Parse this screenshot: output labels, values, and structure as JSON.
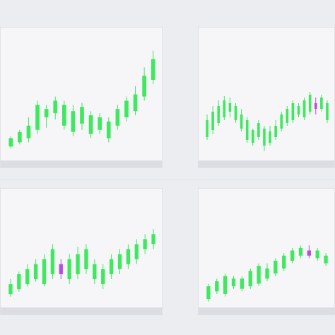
{
  "colors": {
    "up": "#3fe85f",
    "down": "#b54fe2",
    "panel": "#f6f6f9",
    "background": "#ecedf1",
    "footer": "#dcdde3"
  },
  "panels": [
    {
      "title": "",
      "subtitle": "",
      "badge": "",
      "footer_left": "",
      "footer_right": "",
      "chart_data": {
        "type": "candlestick",
        "series": [
          {
            "o": 38,
            "c": 42,
            "h": 43,
            "l": 37
          },
          {
            "o": 40,
            "c": 45,
            "h": 46,
            "l": 39
          },
          {
            "o": 42,
            "c": 48,
            "h": 52,
            "l": 40
          },
          {
            "o": 46,
            "c": 58,
            "h": 60,
            "l": 44
          },
          {
            "o": 52,
            "c": 56,
            "h": 58,
            "l": 47
          },
          {
            "o": 54,
            "c": 60,
            "h": 62,
            "l": 51
          },
          {
            "o": 48,
            "c": 58,
            "h": 60,
            "l": 46
          },
          {
            "o": 45,
            "c": 55,
            "h": 58,
            "l": 43
          },
          {
            "o": 49,
            "c": 57,
            "h": 59,
            "l": 46
          },
          {
            "o": 44,
            "c": 53,
            "h": 55,
            "l": 42
          },
          {
            "o": 46,
            "c": 52,
            "h": 54,
            "l": 44
          },
          {
            "o": 42,
            "c": 50,
            "h": 52,
            "l": 40
          },
          {
            "o": 48,
            "c": 56,
            "h": 58,
            "l": 46
          },
          {
            "o": 52,
            "c": 60,
            "h": 62,
            "l": 50
          },
          {
            "o": 55,
            "c": 63,
            "h": 67,
            "l": 53
          },
          {
            "o": 62,
            "c": 72,
            "h": 76,
            "l": 60
          },
          {
            "o": 70,
            "c": 80,
            "h": 84,
            "l": 68
          }
        ]
      }
    },
    {
      "title": "",
      "subtitle": "",
      "badge": "",
      "footer_left": "",
      "footer_right": "",
      "chart_data": {
        "type": "candlestick",
        "series": [
          {
            "o": 50,
            "c": 62,
            "h": 66,
            "l": 48
          },
          {
            "o": 55,
            "c": 68,
            "h": 72,
            "l": 52
          },
          {
            "o": 60,
            "c": 72,
            "h": 76,
            "l": 58
          },
          {
            "o": 64,
            "c": 76,
            "h": 79,
            "l": 62
          },
          {
            "o": 68,
            "c": 74,
            "h": 78,
            "l": 64
          },
          {
            "o": 62,
            "c": 72,
            "h": 74,
            "l": 60
          },
          {
            "o": 56,
            "c": 66,
            "h": 70,
            "l": 54
          },
          {
            "o": 48,
            "c": 62,
            "h": 64,
            "l": 46
          },
          {
            "o": 46,
            "c": 55,
            "h": 56,
            "l": 44
          },
          {
            "o": 50,
            "c": 60,
            "h": 62,
            "l": 48
          },
          {
            "o": 44,
            "c": 56,
            "h": 58,
            "l": 40
          },
          {
            "o": 46,
            "c": 54,
            "h": 58,
            "l": 44
          },
          {
            "o": 50,
            "c": 58,
            "h": 62,
            "l": 48
          },
          {
            "o": 56,
            "c": 66,
            "h": 68,
            "l": 54
          },
          {
            "o": 60,
            "c": 70,
            "h": 72,
            "l": 58
          },
          {
            "o": 62,
            "c": 74,
            "h": 76,
            "l": 60
          },
          {
            "o": 66,
            "c": 72,
            "h": 74,
            "l": 64
          },
          {
            "o": 64,
            "c": 76,
            "h": 78,
            "l": 62
          },
          {
            "o": 68,
            "c": 80,
            "h": 82,
            "l": 66
          },
          {
            "o": 74,
            "c": 70,
            "h": 78,
            "l": 66
          },
          {
            "o": 70,
            "c": 78,
            "h": 80,
            "l": 68
          },
          {
            "o": 62,
            "c": 74,
            "h": 76,
            "l": 60
          }
        ]
      }
    },
    {
      "title": "",
      "subtitle": "",
      "badge": "",
      "footer_left": "",
      "footer_right": "",
      "chart_data": {
        "type": "candlestick",
        "series": [
          {
            "o": 36,
            "c": 40,
            "h": 42,
            "l": 35
          },
          {
            "o": 38,
            "c": 44,
            "h": 45,
            "l": 37
          },
          {
            "o": 40,
            "c": 46,
            "h": 48,
            "l": 39
          },
          {
            "o": 42,
            "c": 48,
            "h": 50,
            "l": 41
          },
          {
            "o": 40,
            "c": 50,
            "h": 52,
            "l": 39
          },
          {
            "o": 44,
            "c": 54,
            "h": 56,
            "l": 42
          },
          {
            "o": 48,
            "c": 44,
            "h": 50,
            "l": 42
          },
          {
            "o": 42,
            "c": 50,
            "h": 52,
            "l": 40
          },
          {
            "o": 44,
            "c": 52,
            "h": 55,
            "l": 42
          },
          {
            "o": 46,
            "c": 54,
            "h": 56,
            "l": 44
          },
          {
            "o": 42,
            "c": 48,
            "h": 50,
            "l": 40
          },
          {
            "o": 40,
            "c": 46,
            "h": 48,
            "l": 38
          },
          {
            "o": 44,
            "c": 50,
            "h": 52,
            "l": 42
          },
          {
            "o": 46,
            "c": 52,
            "h": 54,
            "l": 44
          },
          {
            "o": 48,
            "c": 54,
            "h": 56,
            "l": 46
          },
          {
            "o": 50,
            "c": 56,
            "h": 58,
            "l": 48
          },
          {
            "o": 54,
            "c": 58,
            "h": 60,
            "l": 52
          },
          {
            "o": 56,
            "c": 60,
            "h": 62,
            "l": 54
          }
        ]
      }
    },
    {
      "title": "",
      "subtitle": "",
      "badge": "",
      "footer_left": "",
      "footer_right": "",
      "chart_data": {
        "type": "candlestick",
        "series": [
          {
            "o": 40,
            "c": 50,
            "h": 52,
            "l": 38
          },
          {
            "o": 46,
            "c": 54,
            "h": 56,
            "l": 44
          },
          {
            "o": 44,
            "c": 58,
            "h": 60,
            "l": 42
          },
          {
            "o": 50,
            "c": 56,
            "h": 58,
            "l": 48
          },
          {
            "o": 48,
            "c": 56,
            "h": 58,
            "l": 46
          },
          {
            "o": 50,
            "c": 62,
            "h": 64,
            "l": 48
          },
          {
            "o": 52,
            "c": 66,
            "h": 68,
            "l": 50
          },
          {
            "o": 56,
            "c": 64,
            "h": 68,
            "l": 54
          },
          {
            "o": 60,
            "c": 70,
            "h": 72,
            "l": 58
          },
          {
            "o": 64,
            "c": 74,
            "h": 76,
            "l": 62
          },
          {
            "o": 70,
            "c": 78,
            "h": 80,
            "l": 68
          },
          {
            "o": 74,
            "c": 80,
            "h": 82,
            "l": 72
          },
          {
            "o": 78,
            "c": 74,
            "h": 82,
            "l": 72
          },
          {
            "o": 72,
            "c": 78,
            "h": 80,
            "l": 70
          },
          {
            "o": 68,
            "c": 74,
            "h": 76,
            "l": 66
          }
        ]
      }
    }
  ]
}
